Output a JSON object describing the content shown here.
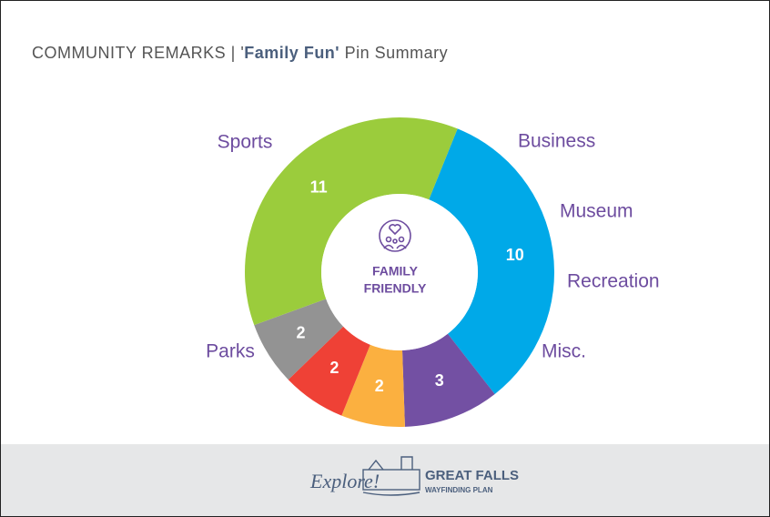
{
  "chart_data": {
    "type": "donut",
    "title_prefix": "COMMUNITY REMARKS  |  '",
    "title_bold": "Family Fun'",
    "title_suffix": "Pin Summary",
    "center_label": [
      "FAMILY",
      "FRIENDLY"
    ],
    "categories": [
      "Sports",
      "Business",
      "Museum",
      "Recreation",
      "Misc.",
      "Parks"
    ],
    "values": [
      10,
      3,
      2,
      2,
      2,
      11
    ],
    "colors": [
      "#00a9e8",
      "#7350a3",
      "#fbb040",
      "#ef4136",
      "#939393",
      "#9bcc3c"
    ]
  },
  "footer": {
    "script": "Explore!",
    "brand": "GREAT FALLS",
    "tagline": "WAYFINDING PLAN"
  }
}
